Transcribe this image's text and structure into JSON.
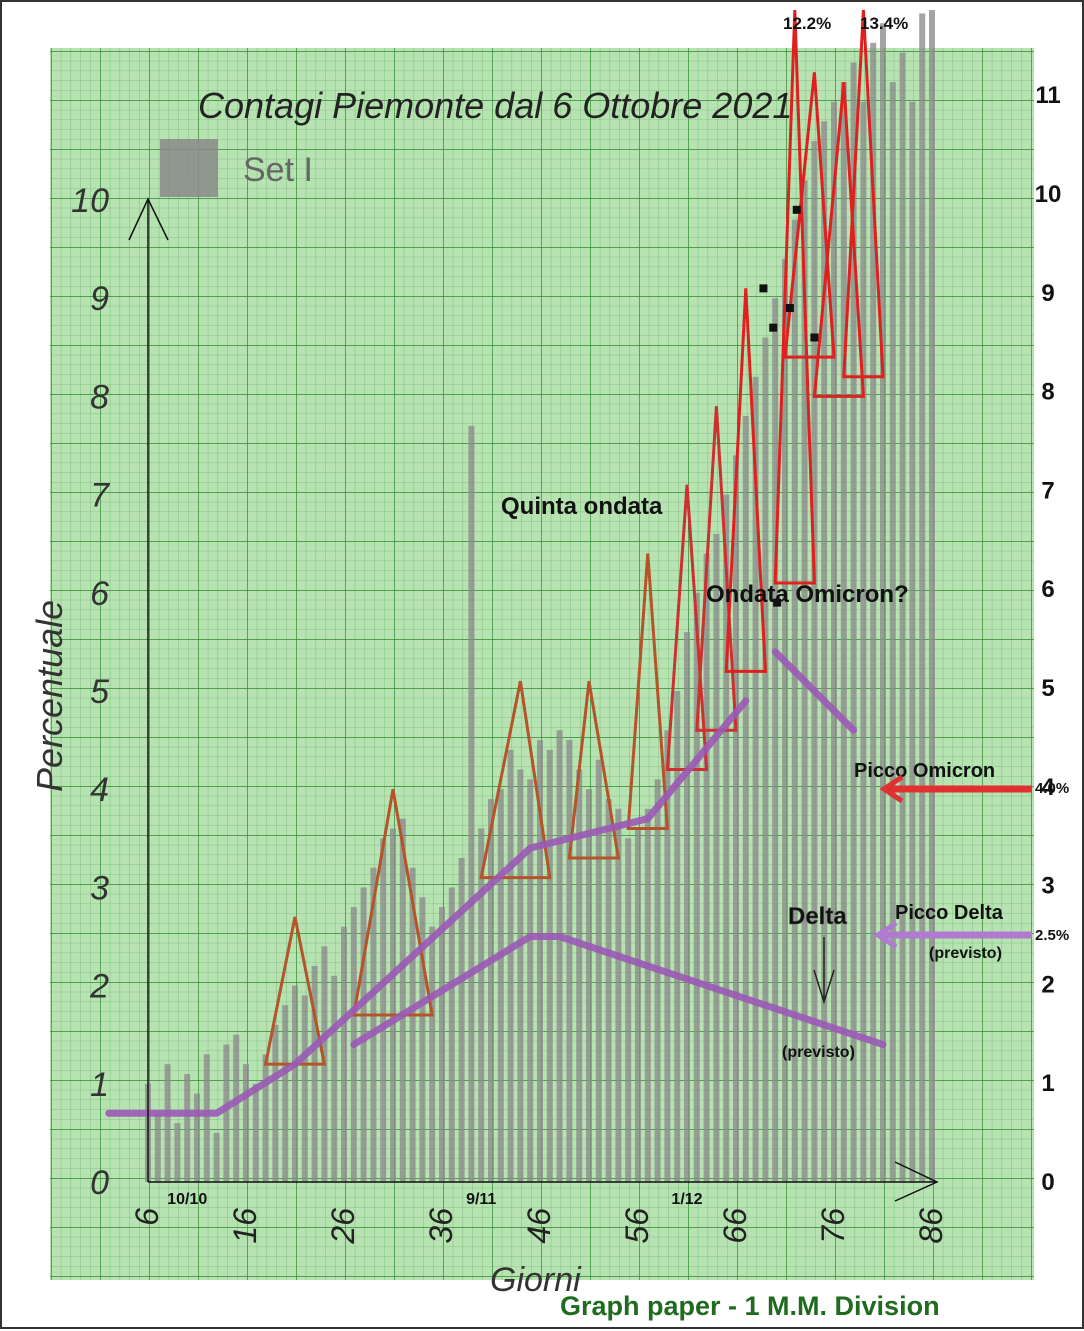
{
  "chart_data": {
    "type": "bar",
    "title": "Contagi Piemonte dal 6 Ottobre 2021",
    "legend": {
      "label": "Set I",
      "color": "#8a8a8a",
      "placement": "top-left"
    },
    "xlabel": "Giorni",
    "ylabel": "Percentuale",
    "xlim": [
      6,
      86
    ],
    "ylim": [
      0,
      10
    ],
    "x_ticks": [
      6,
      16,
      26,
      36,
      46,
      56,
      66,
      76,
      86
    ],
    "y_ticks_left": [
      0,
      1,
      2,
      3,
      4,
      5,
      6,
      7,
      8,
      9,
      10
    ],
    "y_ticks_right": [
      0,
      1,
      2,
      3,
      4,
      5,
      6,
      7,
      8,
      9,
      10,
      11
    ],
    "date_labels": [
      {
        "x": 10,
        "label": "10/10"
      },
      {
        "x": 40,
        "label": "9/11"
      },
      {
        "x": 61,
        "label": "1/12"
      }
    ],
    "series": [
      {
        "name": "Set I",
        "x": [
          6,
          7,
          8,
          9,
          10,
          11,
          12,
          13,
          14,
          15,
          16,
          17,
          18,
          19,
          20,
          21,
          22,
          23,
          24,
          25,
          26,
          27,
          28,
          29,
          30,
          31,
          32,
          33,
          34,
          35,
          36,
          37,
          38,
          39,
          40,
          41,
          42,
          43,
          44,
          45,
          46,
          47,
          48,
          49,
          50,
          51,
          52,
          53,
          54,
          55,
          56,
          57,
          58,
          59,
          60,
          61,
          62,
          63,
          64,
          65,
          66,
          67,
          68,
          69,
          70,
          71,
          72,
          73,
          74,
          75,
          76,
          77,
          78,
          79,
          80,
          81,
          82,
          83,
          84,
          85,
          86
        ],
        "values": [
          1.0,
          0.7,
          1.2,
          0.6,
          1.1,
          0.9,
          1.3,
          0.5,
          1.4,
          1.5,
          1.2,
          1.0,
          1.3,
          1.6,
          1.8,
          2.0,
          1.9,
          2.2,
          2.4,
          2.1,
          2.6,
          2.8,
          3.0,
          3.2,
          3.5,
          3.6,
          3.7,
          3.2,
          2.9,
          2.6,
          2.8,
          3.0,
          3.3,
          7.7,
          3.6,
          3.9,
          4.0,
          4.4,
          4.2,
          4.1,
          4.5,
          4.4,
          4.6,
          4.5,
          4.2,
          4.0,
          4.3,
          3.9,
          3.8,
          3.5,
          3.6,
          3.8,
          4.1,
          4.6,
          5.0,
          5.6,
          6.0,
          6.4,
          6.6,
          7.0,
          7.4,
          7.8,
          8.2,
          8.6,
          9.0,
          9.4,
          9.8,
          10.2,
          10.6,
          10.8,
          11.0,
          11.2,
          11.4,
          11.0,
          11.6,
          11.8,
          11.2,
          11.5,
          11.0,
          11.9,
          12.0
        ]
      }
    ],
    "annotations": [
      {
        "text": "Quinta ondata"
      },
      {
        "text": "Ondata Omicron?"
      },
      {
        "text": "Picco Omicron"
      },
      {
        "text": "4.0%"
      },
      {
        "text": "Delta"
      },
      {
        "text": "(previsto)"
      },
      {
        "text": "Picco Delta"
      },
      {
        "text": "(previsto)"
      },
      {
        "text": "2.5%"
      },
      {
        "text": "12.2%"
      },
      {
        "text": "13.4%"
      }
    ],
    "overlay_lines": [
      {
        "name": "Omicron trend",
        "color": "#9b59b6",
        "x": [
          2,
          13,
          21,
          45,
          57,
          62,
          67
        ],
        "y": [
          0.7,
          0.7,
          1.2,
          3.4,
          3.7,
          4.3,
          4.9
        ]
      },
      {
        "name": "Delta trend",
        "color": "#9b59b6",
        "x": [
          27,
          45,
          48,
          57,
          81
        ],
        "y": [
          1.4,
          2.5,
          2.5,
          2.2,
          1.4
        ]
      },
      {
        "name": "Omicron decline",
        "color": "#9b59b6",
        "x": [
          70,
          78
        ],
        "y": [
          5.4,
          4.6
        ]
      }
    ],
    "red_peaks": [
      {
        "x": [
          18,
          21,
          24
        ],
        "y": [
          1.2,
          2.7,
          1.2
        ],
        "color": "#b5532a"
      },
      {
        "x": [
          27,
          31,
          35
        ],
        "y": [
          1.7,
          4.0,
          1.7
        ],
        "color": "#b5532a"
      },
      {
        "x": [
          40,
          44,
          47
        ],
        "y": [
          3.1,
          5.1,
          3.1
        ],
        "color": "#b5532a"
      },
      {
        "x": [
          49,
          51,
          54
        ],
        "y": [
          3.3,
          5.1,
          3.3
        ],
        "color": "#b5532a"
      },
      {
        "x": [
          55,
          57,
          59
        ],
        "y": [
          3.6,
          6.4,
          3.6
        ],
        "color": "#b5532a"
      },
      {
        "x": [
          59,
          61,
          63
        ],
        "y": [
          4.2,
          7.1,
          4.2
        ],
        "color": "#cc3030"
      },
      {
        "x": [
          62,
          64,
          66
        ],
        "y": [
          4.6,
          7.9,
          4.6
        ],
        "color": "#cc3030"
      },
      {
        "x": [
          65,
          67,
          69
        ],
        "y": [
          5.2,
          9.1,
          5.2
        ],
        "color": "#e02020"
      },
      {
        "x": [
          70,
          72,
          74
        ],
        "y": [
          6.1,
          12.2,
          6.1
        ],
        "color": "#e02020"
      },
      {
        "x": [
          71,
          74,
          76
        ],
        "y": [
          8.4,
          11.3,
          8.4
        ],
        "color": "#e02020"
      },
      {
        "x": [
          74,
          77,
          79
        ],
        "y": [
          8.0,
          11.2,
          8.0
        ],
        "color": "#e02020"
      },
      {
        "x": [
          77,
          79,
          81
        ],
        "y": [
          8.2,
          13.4,
          8.2
        ],
        "color": "#e02020"
      }
    ],
    "markers": [
      {
        "x": 69.8,
        "y": 8.7
      },
      {
        "x": 68.8,
        "y": 9.1
      },
      {
        "x": 71.5,
        "y": 8.9
      },
      {
        "x": 72.2,
        "y": 9.9
      },
      {
        "x": 74.0,
        "y": 8.6
      },
      {
        "x": 70.2,
        "y": 5.9
      }
    ],
    "grid": true,
    "background_color": "#b7e2b2",
    "grid_color": "#2f8a2f"
  },
  "footer": "Graph paper - 1 M.M. Division"
}
